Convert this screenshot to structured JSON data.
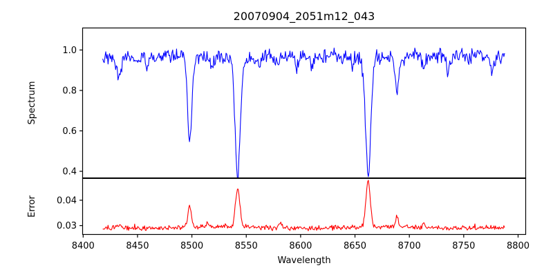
{
  "figure": {
    "background_color": "#ffffff",
    "text_color": "#000000"
  },
  "chart_data": {
    "type": "line",
    "title": "20070904_2051m12_043",
    "xlabel": "Wavelength",
    "grid": false,
    "legend": null,
    "xlim": [
      8399.5,
      8807.0
    ],
    "x_ticks": [
      8400,
      8450,
      8500,
      8550,
      8600,
      8650,
      8700,
      8750,
      8800
    ],
    "x_tick_labels": [
      "8400",
      "8450",
      "8500",
      "8550",
      "8600",
      "8650",
      "8700",
      "8750",
      "8800"
    ],
    "panels": [
      {
        "name": "spectrum",
        "ylabel": "Spectrum",
        "line_color": "#0000ff",
        "ylim": [
          0.366,
          1.109
        ],
        "y_ticks": [
          0.4,
          0.6,
          0.8,
          1.0
        ],
        "y_tick_labels": [
          "0.4",
          "0.6",
          "0.8",
          "1.0"
        ],
        "series": {
          "x_start": 8418,
          "x_end": 8788,
          "x_step": 0.7,
          "continuum_level": 0.965,
          "noise_amplitude": 0.021,
          "absorption_lines": [
            {
              "center": 8433.0,
              "depth": 0.085,
              "sigma": 2.0
            },
            {
              "center": 8459.0,
              "depth": 0.055,
              "sigma": 1.6
            },
            {
              "center": 8498.0,
              "depth": 0.43,
              "sigma": 2.0
            },
            {
              "center": 8518.0,
              "depth": 0.06,
              "sigma": 1.5
            },
            {
              "center": 8542.1,
              "depth": 0.585,
              "sigma": 2.4
            },
            {
              "center": 8596.0,
              "depth": 0.05,
              "sigma": 1.5
            },
            {
              "center": 8610.0,
              "depth": 0.06,
              "sigma": 1.5
            },
            {
              "center": 8648.0,
              "depth": 0.045,
              "sigma": 1.3
            },
            {
              "center": 8662.1,
              "depth": 0.575,
              "sigma": 2.4
            },
            {
              "center": 8688.6,
              "depth": 0.19,
              "sigma": 1.6
            },
            {
              "center": 8713.0,
              "depth": 0.055,
              "sigma": 1.4
            },
            {
              "center": 8736.0,
              "depth": 0.08,
              "sigma": 1.6
            },
            {
              "center": 8776.0,
              "depth": 0.065,
              "sigma": 1.5
            }
          ]
        }
      },
      {
        "name": "error",
        "ylabel": "Error",
        "line_color": "#ff0000",
        "ylim": [
          0.0265,
          0.0487
        ],
        "y_ticks": [
          0.03,
          0.04
        ],
        "y_tick_labels": [
          "0.03",
          "0.04"
        ],
        "series": {
          "x_start": 8418,
          "x_end": 8788,
          "x_step": 0.7,
          "baseline_level": 0.0292,
          "noise_amplitude": 0.0006,
          "emission_spikes": [
            {
              "center": 8433.0,
              "height": 0.0012,
              "sigma": 1.8
            },
            {
              "center": 8498.0,
              "height": 0.0088,
              "sigma": 1.6
            },
            {
              "center": 8514.0,
              "height": 0.0018,
              "sigma": 1.4
            },
            {
              "center": 8542.1,
              "height": 0.0153,
              "sigma": 2.0
            },
            {
              "center": 8582.0,
              "height": 0.0018,
              "sigma": 1.4
            },
            {
              "center": 8662.1,
              "height": 0.018,
              "sigma": 2.0
            },
            {
              "center": 8688.6,
              "height": 0.0042,
              "sigma": 1.5
            },
            {
              "center": 8713.0,
              "height": 0.0014,
              "sigma": 1.4
            }
          ]
        }
      }
    ]
  }
}
